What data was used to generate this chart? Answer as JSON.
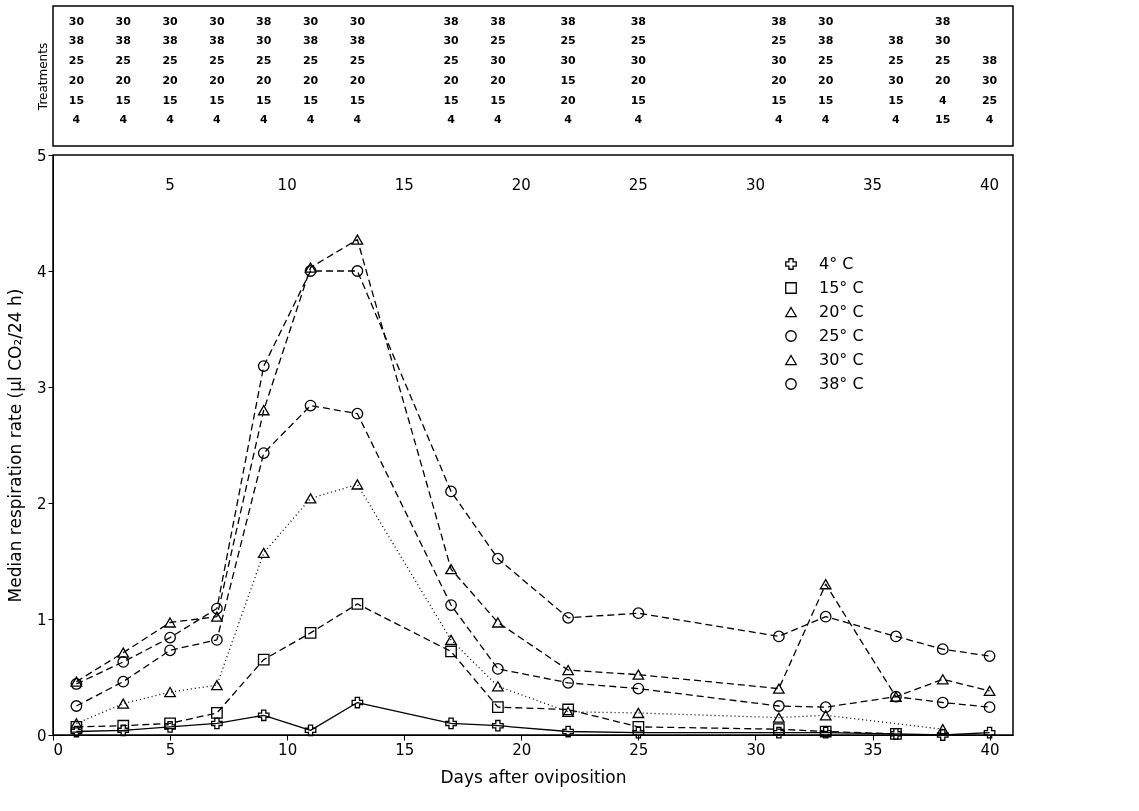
{
  "chart_data": {
    "type": "line",
    "xlabel": "Days after oviposition",
    "ylabel": "Median respiration rate (µl CO₂/24 h)",
    "xlim": [
      0,
      41
    ],
    "xticks": [
      0,
      5,
      10,
      15,
      20,
      25,
      30,
      35,
      40
    ],
    "x2lim": [
      0,
      41
    ],
    "x2ticks": [
      5,
      10,
      15,
      20,
      25,
      30,
      35,
      40
    ],
    "ylim": [
      0,
      5
    ],
    "yticks": [
      0,
      1,
      2,
      3,
      4,
      5
    ],
    "grid": false,
    "legend": "right",
    "annotations": [
      "Treatments",
      "30\n38\n25\n20\n15\n4",
      "30\n38\n25\n20\n15\n4",
      "30\n38\n25\n20\n15\n4",
      "30\n38\n25\n20\n15\n4",
      "38\n30\n25\n20\n15\n4",
      "30\n38\n25\n20\n15\n4",
      "30\n38\n25\n20\n15\n4",
      "38\n30\n25\n20\n15\n4",
      "38\n25\n30\n20\n15\n4",
      "38\n25\n30\n15\n20\n4",
      "38\n25\n30\n20\n15\n4",
      "38\n25\n30\n20\n15\n4",
      "30\n38\n25\n20\n15\n4",
      "\n38\n25\n30\n15\n4",
      "38\n30\n25\n20\n4\n15",
      "\n\n38\n30\n25\n4"
    ],
    "series": [
      {
        "name": "4° C",
        "color": "#000000",
        "marker": "cross",
        "line_style": "solid",
        "x": [
          1,
          3,
          5,
          7,
          9,
          11,
          13,
          17,
          19,
          22,
          25,
          31,
          33,
          36,
          38,
          40
        ],
        "values": [
          0.03,
          0.04,
          0.07,
          0.1,
          0.17,
          0.04,
          0.28,
          0.1,
          0.08,
          0.03,
          0.02,
          0.02,
          0.02,
          0.01,
          0.0,
          0.02
        ]
      },
      {
        "name": "15° C",
        "color": "#000000",
        "marker": "square",
        "line_style": "dashed",
        "x": [
          1,
          3,
          5,
          7,
          9,
          11,
          13,
          17,
          19,
          22,
          25,
          31,
          33,
          36
        ],
        "values": [
          0.07,
          0.08,
          0.1,
          0.19,
          0.65,
          0.88,
          1.13,
          0.72,
          0.24,
          0.22,
          0.07,
          0.05,
          0.03,
          0.01
        ]
      },
      {
        "name": "20° C",
        "color": "#000000",
        "marker": "triangle",
        "line_style": "dotted",
        "x": [
          1,
          3,
          5,
          7,
          9,
          11,
          13,
          17,
          19,
          22,
          25,
          31,
          33,
          38
        ],
        "values": [
          0.1,
          0.27,
          0.37,
          0.43,
          1.57,
          2.04,
          2.16,
          0.82,
          0.42,
          0.2,
          0.19,
          0.15,
          0.17,
          0.05
        ]
      },
      {
        "name": "25° C",
        "color": "#000000",
        "marker": "circle",
        "line_style": "dashed",
        "x": [
          1,
          3,
          5,
          7,
          9,
          11,
          13,
          17,
          19,
          22,
          25,
          31,
          33,
          36,
          38,
          40
        ],
        "values": [
          0.25,
          0.46,
          0.73,
          0.82,
          2.43,
          2.84,
          2.77,
          1.12,
          0.57,
          0.45,
          0.4,
          0.25,
          0.24,
          0.33,
          0.28,
          0.24
        ]
      },
      {
        "name": "30° C",
        "color": "#000000",
        "marker": "triangle",
        "line_style": "dashed",
        "x": [
          1,
          3,
          5,
          7,
          9,
          11,
          13,
          17,
          19,
          22,
          25,
          31,
          33,
          36,
          38,
          40
        ],
        "values": [
          0.46,
          0.71,
          0.97,
          1.02,
          2.8,
          4.03,
          4.27,
          1.43,
          0.97,
          0.56,
          0.52,
          0.4,
          1.3,
          0.33,
          0.48,
          0.38
        ]
      },
      {
        "name": "38° C",
        "color": "#000000",
        "marker": "circle",
        "line_style": "dashed",
        "x": [
          1,
          3,
          5,
          7,
          9,
          11,
          13,
          17,
          19,
          22,
          25,
          31,
          33,
          36,
          38,
          40
        ],
        "values": [
          0.44,
          0.63,
          0.84,
          1.09,
          3.18,
          4.0,
          4.0,
          2.1,
          1.52,
          1.01,
          1.05,
          0.85,
          1.02,
          0.85,
          0.74,
          0.68
        ]
      }
    ]
  }
}
